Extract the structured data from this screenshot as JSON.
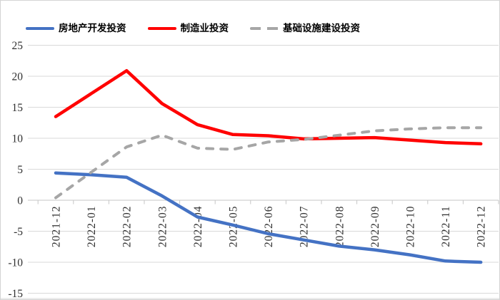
{
  "chart_data": {
    "type": "line",
    "title": "",
    "categories": [
      "2021-12",
      "2022-01",
      "2022-02",
      "2022-03",
      "2022-04",
      "2022-05",
      "2022-06",
      "2022-07",
      "2022-08",
      "2022-09",
      "2022-10",
      "2022-11",
      "2022-12"
    ],
    "series": [
      {
        "name": "房地产开发投资",
        "color": "#4472C4",
        "style": "solid",
        "values": [
          4.4,
          4.1,
          3.7,
          0.7,
          -2.7,
          -4.0,
          -5.4,
          -6.4,
          -7.4,
          -8.0,
          -8.8,
          -9.8,
          -10.0
        ]
      },
      {
        "name": "制造业投资",
        "color": "#FF0000",
        "style": "solid",
        "values": [
          13.5,
          17.2,
          20.9,
          15.6,
          12.2,
          10.6,
          10.4,
          9.9,
          10.0,
          10.1,
          9.7,
          9.3,
          9.1
        ]
      },
      {
        "name": "基础设施建设投资",
        "color": "#A6A6A6",
        "style": "dashed",
        "values": [
          0.4,
          4.5,
          8.6,
          10.5,
          8.4,
          8.2,
          9.4,
          9.8,
          10.5,
          11.2,
          11.5,
          11.7,
          11.7
        ]
      }
    ],
    "y_axis": {
      "min": -15,
      "max": 25,
      "step": 5,
      "tick_labels": [
        "25",
        "20",
        "15",
        "10",
        "5",
        "0",
        "-5",
        "-10",
        "-15"
      ]
    },
    "x_axis": {
      "label_rotation_deg": -90
    },
    "legend": {
      "position": "top"
    },
    "grid": true
  },
  "colors": {
    "background": "#ffffff",
    "gridline": "#d9d9d9",
    "axis": "#c6c6c6",
    "label_text": "#303030",
    "legend_text": "#000000"
  }
}
